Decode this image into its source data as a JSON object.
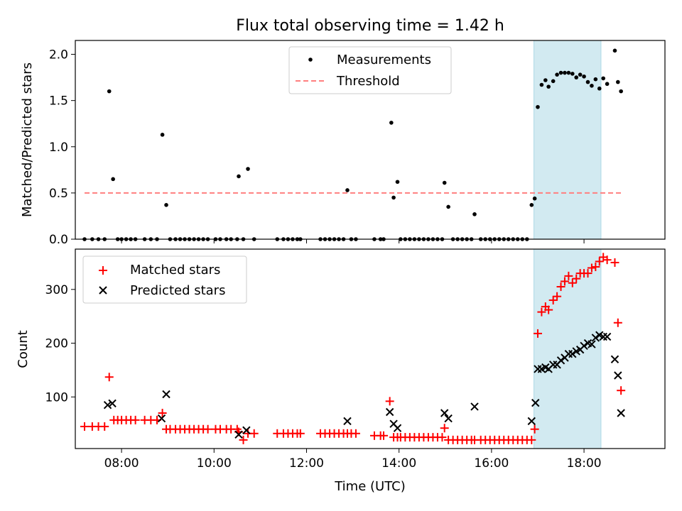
{
  "figure": {
    "title": "Flux total observing time = 1.42 h"
  },
  "chart_data": [
    {
      "type": "scatter",
      "panel": "top",
      "title": "Flux total observing time = 1.42 h",
      "ylabel": "Matched/Predicted stars",
      "xlabel": "",
      "xlim": [
        "07:00",
        "19:45"
      ],
      "ylim": [
        0,
        2.15
      ],
      "yticks": [
        0.0,
        0.5,
        1.0,
        1.5,
        2.0
      ],
      "ytick_labels": [
        "0.0",
        "0.5",
        "1.0",
        "1.5",
        "2.0"
      ],
      "legend": {
        "placement": "upper center",
        "entries": [
          "Measurements",
          "Threshold"
        ]
      },
      "highlight_span": {
        "x": [
          "16:55",
          "18:22"
        ],
        "color": "#add8e6"
      },
      "threshold": {
        "name": "Threshold",
        "y": 0.5,
        "x": [
          "07:12",
          "18:48"
        ],
        "color": "#ff7f7f",
        "style": "dashed"
      },
      "series": [
        {
          "name": "Measurements",
          "color": "#000000",
          "marker": "dot",
          "points": [
            [
              "07:12",
              0
            ],
            [
              "07:22",
              0
            ],
            [
              "07:30",
              0
            ],
            [
              "07:38",
              0
            ],
            [
              "07:44",
              1.6
            ],
            [
              "07:49",
              0.65
            ],
            [
              "07:55",
              0
            ],
            [
              "08:00",
              0
            ],
            [
              "08:06",
              0
            ],
            [
              "08:12",
              0
            ],
            [
              "08:18",
              0
            ],
            [
              "08:30",
              0
            ],
            [
              "08:38",
              0
            ],
            [
              "08:46",
              0
            ],
            [
              "08:53",
              1.13
            ],
            [
              "08:58",
              0.37
            ],
            [
              "09:03",
              0
            ],
            [
              "09:10",
              0
            ],
            [
              "09:16",
              0
            ],
            [
              "09:22",
              0
            ],
            [
              "09:28",
              0
            ],
            [
              "09:34",
              0
            ],
            [
              "09:40",
              0
            ],
            [
              "09:46",
              0
            ],
            [
              "09:52",
              0
            ],
            [
              "10:02",
              0
            ],
            [
              "10:08",
              0
            ],
            [
              "10:16",
              0
            ],
            [
              "10:22",
              0
            ],
            [
              "10:30",
              0
            ],
            [
              "10:32",
              0.68
            ],
            [
              "10:38",
              0
            ],
            [
              "10:44",
              0.76
            ],
            [
              "10:52",
              0
            ],
            [
              "11:22",
              0
            ],
            [
              "11:30",
              0
            ],
            [
              "11:36",
              0
            ],
            [
              "11:42",
              0
            ],
            [
              "11:48",
              0
            ],
            [
              "11:52",
              0
            ],
            [
              "12:18",
              0
            ],
            [
              "12:24",
              0
            ],
            [
              "12:30",
              0
            ],
            [
              "12:36",
              0
            ],
            [
              "12:42",
              0
            ],
            [
              "12:48",
              0
            ],
            [
              "12:53",
              0.53
            ],
            [
              "12:58",
              0
            ],
            [
              "13:04",
              0
            ],
            [
              "13:28",
              0
            ],
            [
              "13:36",
              0
            ],
            [
              "13:40",
              0
            ],
            [
              "13:50",
              1.26
            ],
            [
              "13:53",
              0.45
            ],
            [
              "13:58",
              0.62
            ],
            [
              "14:02",
              0
            ],
            [
              "14:08",
              0
            ],
            [
              "14:14",
              0
            ],
            [
              "14:20",
              0
            ],
            [
              "14:26",
              0
            ],
            [
              "14:32",
              0
            ],
            [
              "14:38",
              0
            ],
            [
              "14:44",
              0
            ],
            [
              "14:50",
              0
            ],
            [
              "14:56",
              0
            ],
            [
              "14:59",
              0.61
            ],
            [
              "15:04",
              0.35
            ],
            [
              "15:10",
              0
            ],
            [
              "15:16",
              0
            ],
            [
              "15:22",
              0
            ],
            [
              "15:28",
              0
            ],
            [
              "15:34",
              0
            ],
            [
              "15:38",
              0.27
            ],
            [
              "15:46",
              0
            ],
            [
              "15:52",
              0
            ],
            [
              "15:58",
              0
            ],
            [
              "16:04",
              0
            ],
            [
              "16:10",
              0
            ],
            [
              "16:16",
              0
            ],
            [
              "16:22",
              0
            ],
            [
              "16:28",
              0
            ],
            [
              "16:34",
              0
            ],
            [
              "16:40",
              0
            ],
            [
              "16:46",
              0
            ],
            [
              "16:52",
              0.37
            ],
            [
              "16:56",
              0.44
            ],
            [
              "17:00",
              1.43
            ],
            [
              "17:05",
              1.67
            ],
            [
              "17:10",
              1.72
            ],
            [
              "17:14",
              1.65
            ],
            [
              "17:20",
              1.71
            ],
            [
              "17:25",
              1.78
            ],
            [
              "17:30",
              1.8
            ],
            [
              "17:35",
              1.8
            ],
            [
              "17:40",
              1.8
            ],
            [
              "17:45",
              1.79
            ],
            [
              "17:50",
              1.75
            ],
            [
              "17:55",
              1.78
            ],
            [
              "18:00",
              1.76
            ],
            [
              "18:05",
              1.7
            ],
            [
              "18:10",
              1.66
            ],
            [
              "18:15",
              1.73
            ],
            [
              "18:20",
              1.63
            ],
            [
              "18:25",
              1.74
            ],
            [
              "18:30",
              1.68
            ],
            [
              "18:40",
              2.04
            ],
            [
              "18:44",
              1.7
            ],
            [
              "18:48",
              1.6
            ]
          ]
        }
      ]
    },
    {
      "type": "scatter",
      "panel": "bottom",
      "title": "",
      "ylabel": "Count",
      "xlabel": "Time (UTC)",
      "xlim": [
        "07:00",
        "19:45"
      ],
      "ylim": [
        4,
        375
      ],
      "yticks": [
        100,
        200,
        300
      ],
      "ytick_labels": [
        "100",
        "200",
        "300"
      ],
      "xticks": [
        "08:00",
        "10:00",
        "12:00",
        "14:00",
        "16:00",
        "18:00"
      ],
      "xtick_labels": [
        "08:00",
        "10:00",
        "12:00",
        "14:00",
        "16:00",
        "18:00"
      ],
      "legend": {
        "placement": "upper left",
        "entries": [
          "Matched stars",
          "Predicted stars"
        ]
      },
      "highlight_span": {
        "x": [
          "16:55",
          "18:22"
        ],
        "color": "#add8e6"
      },
      "series": [
        {
          "name": "Matched stars",
          "color": "#ff0000",
          "marker": "plus",
          "points": [
            [
              "07:12",
              45
            ],
            [
              "07:22",
              45
            ],
            [
              "07:30",
              45
            ],
            [
              "07:38",
              45
            ],
            [
              "07:44",
              137
            ],
            [
              "07:50",
              57
            ],
            [
              "07:55",
              57
            ],
            [
              "08:00",
              57
            ],
            [
              "08:06",
              57
            ],
            [
              "08:12",
              57
            ],
            [
              "08:18",
              57
            ],
            [
              "08:30",
              57
            ],
            [
              "08:38",
              57
            ],
            [
              "08:46",
              57
            ],
            [
              "08:53",
              70
            ],
            [
              "08:58",
              40
            ],
            [
              "09:03",
              40
            ],
            [
              "09:10",
              40
            ],
            [
              "09:16",
              40
            ],
            [
              "09:22",
              40
            ],
            [
              "09:28",
              40
            ],
            [
              "09:34",
              40
            ],
            [
              "09:40",
              40
            ],
            [
              "09:46",
              40
            ],
            [
              "09:52",
              40
            ],
            [
              "10:02",
              40
            ],
            [
              "10:08",
              40
            ],
            [
              "10:16",
              40
            ],
            [
              "10:22",
              40
            ],
            [
              "10:30",
              40
            ],
            [
              "10:32",
              35
            ],
            [
              "10:38",
              20
            ],
            [
              "10:44",
              32
            ],
            [
              "10:52",
              32
            ],
            [
              "11:22",
              32
            ],
            [
              "11:30",
              32
            ],
            [
              "11:36",
              32
            ],
            [
              "11:42",
              32
            ],
            [
              "11:48",
              32
            ],
            [
              "11:52",
              32
            ],
            [
              "12:18",
              32
            ],
            [
              "12:24",
              32
            ],
            [
              "12:30",
              32
            ],
            [
              "12:36",
              32
            ],
            [
              "12:42",
              32
            ],
            [
              "12:48",
              32
            ],
            [
              "12:53",
              32
            ],
            [
              "12:58",
              32
            ],
            [
              "13:04",
              32
            ],
            [
              "13:28",
              28
            ],
            [
              "13:36",
              28
            ],
            [
              "13:40",
              28
            ],
            [
              "13:48",
              92
            ],
            [
              "13:53",
              25
            ],
            [
              "13:58",
              25
            ],
            [
              "14:02",
              25
            ],
            [
              "14:08",
              25
            ],
            [
              "14:14",
              25
            ],
            [
              "14:20",
              25
            ],
            [
              "14:26",
              25
            ],
            [
              "14:32",
              25
            ],
            [
              "14:38",
              25
            ],
            [
              "14:44",
              25
            ],
            [
              "14:50",
              25
            ],
            [
              "14:56",
              25
            ],
            [
              "14:59",
              42
            ],
            [
              "15:04",
              20
            ],
            [
              "15:10",
              20
            ],
            [
              "15:16",
              20
            ],
            [
              "15:22",
              20
            ],
            [
              "15:28",
              20
            ],
            [
              "15:34",
              20
            ],
            [
              "15:38",
              20
            ],
            [
              "15:46",
              20
            ],
            [
              "15:52",
              20
            ],
            [
              "15:58",
              20
            ],
            [
              "16:04",
              20
            ],
            [
              "16:10",
              20
            ],
            [
              "16:16",
              20
            ],
            [
              "16:22",
              20
            ],
            [
              "16:28",
              20
            ],
            [
              "16:34",
              20
            ],
            [
              "16:40",
              20
            ],
            [
              "16:46",
              20
            ],
            [
              "16:52",
              20
            ],
            [
              "16:56",
              40
            ],
            [
              "17:00",
              218
            ],
            [
              "17:05",
              258
            ],
            [
              "17:10",
              268
            ],
            [
              "17:14",
              262
            ],
            [
              "17:20",
              280
            ],
            [
              "17:25",
              287
            ],
            [
              "17:30",
              305
            ],
            [
              "17:35",
              315
            ],
            [
              "17:40",
              325
            ],
            [
              "17:45",
              312
            ],
            [
              "17:50",
              320
            ],
            [
              "17:55",
              330
            ],
            [
              "18:00",
              330
            ],
            [
              "18:05",
              330
            ],
            [
              "18:10",
              340
            ],
            [
              "18:15",
              342
            ],
            [
              "18:20",
              352
            ],
            [
              "18:25",
              360
            ],
            [
              "18:30",
              355
            ],
            [
              "18:40",
              350
            ],
            [
              "18:44",
              238
            ],
            [
              "18:48",
              112
            ]
          ]
        },
        {
          "name": "Predicted stars",
          "color": "#000000",
          "marker": "x",
          "points": [
            [
              "07:42",
              85
            ],
            [
              "07:48",
              88
            ],
            [
              "08:52",
              60
            ],
            [
              "08:58",
              105
            ],
            [
              "10:32",
              30
            ],
            [
              "10:42",
              38
            ],
            [
              "12:53",
              55
            ],
            [
              "13:48",
              72
            ],
            [
              "13:53",
              50
            ],
            [
              "13:58",
              42
            ],
            [
              "14:59",
              70
            ],
            [
              "15:04",
              60
            ],
            [
              "15:38",
              82
            ],
            [
              "16:52",
              55
            ],
            [
              "16:57",
              89
            ],
            [
              "17:00",
              152
            ],
            [
              "17:05",
              152
            ],
            [
              "17:10",
              155
            ],
            [
              "17:14",
              152
            ],
            [
              "17:20",
              160
            ],
            [
              "17:25",
              160
            ],
            [
              "17:30",
              168
            ],
            [
              "17:35",
              173
            ],
            [
              "17:40",
              180
            ],
            [
              "17:45",
              180
            ],
            [
              "17:50",
              185
            ],
            [
              "17:55",
              188
            ],
            [
              "18:00",
              195
            ],
            [
              "18:05",
              200
            ],
            [
              "18:10",
              198
            ],
            [
              "18:15",
              210
            ],
            [
              "18:20",
              215
            ],
            [
              "18:25",
              212
            ],
            [
              "18:30",
              212
            ],
            [
              "18:40",
              170
            ],
            [
              "18:44",
              140
            ],
            [
              "18:48",
              70
            ]
          ]
        }
      ]
    }
  ]
}
